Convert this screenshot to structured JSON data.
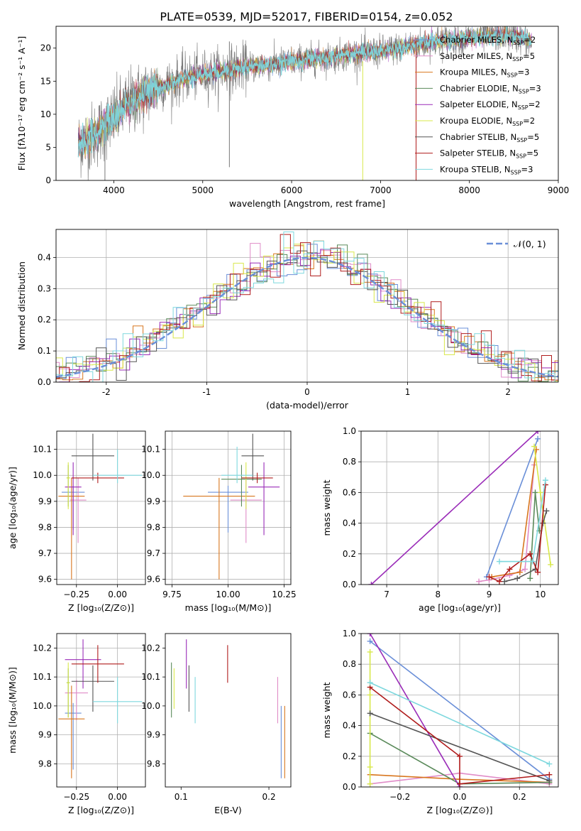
{
  "figure_title": "PLATE=0539, MJD=52017, FIBERID=0154, z=0.052",
  "colors": {
    "chabrier_miles": "#6a8fd8",
    "salpeter_miles": "#e08cc8",
    "kroupa_miles": "#d8761e",
    "chabrier_elodie": "#5a8a5a",
    "salpeter_elodie": "#9a2cb8",
    "kroupa_elodie": "#d8e84a",
    "chabrier_stelib": "#555555",
    "salpeter_stelib": "#b01c1c",
    "kroupa_stelib": "#7ed8de",
    "gauss": "#6a8fd8"
  },
  "chart_data": [
    {
      "id": "spectrum",
      "type": "line",
      "xlabel": "wavelength [Angstrom, rest frame]",
      "ylabel": "Flux [fλ10⁻¹⁷ erg cm⁻² s⁻¹ A⁻¹]",
      "xlim": [
        3350,
        9000
      ],
      "ylim": [
        0,
        23.3
      ],
      "xticks": [
        4000,
        5000,
        6000,
        7000,
        8000,
        9000
      ],
      "yticks": [
        0,
        5,
        10,
        15,
        20
      ],
      "legend_position": "top-right",
      "x_range_data": [
        3600,
        8700
      ],
      "spectrum_anchor_x": [
        3600,
        3800,
        4000,
        4200,
        4400,
        4600,
        4800,
        5000,
        5200,
        5400,
        5600,
        5800,
        6000,
        6200,
        6400,
        6600,
        6800,
        7000,
        7200,
        7400,
        7600,
        7800,
        8000,
        8200,
        8400,
        8600,
        8700
      ],
      "spectrum_anchor_y": [
        5.5,
        7.0,
        9.5,
        12.0,
        13.5,
        14.5,
        15.5,
        16.0,
        16.5,
        17.0,
        17.3,
        17.5,
        18.0,
        18.3,
        18.5,
        19.0,
        19.3,
        19.5,
        20.0,
        20.5,
        21.0,
        21.3,
        21.5,
        21.8,
        22.0,
        21.5,
        21.0
      ],
      "legend": [
        {
          "label": "Chabrier MILES, N",
          "sub": "SSP",
          "tail": "=2",
          "color": "#6a8fd8"
        },
        {
          "label": "Salpeter MILES, N",
          "sub": "SSP",
          "tail": "=5",
          "color": "#e08cc8"
        },
        {
          "label": "Kroupa MILES, N",
          "sub": "SSP",
          "tail": "=3",
          "color": "#d8761e"
        },
        {
          "label": "Chabrier ELODIE, N",
          "sub": "SSP",
          "tail": "=3",
          "color": "#5a8a5a"
        },
        {
          "label": "Salpeter ELODIE, N",
          "sub": "SSP",
          "tail": "=2",
          "color": "#9a2cb8"
        },
        {
          "label": "Kroupa ELODIE, N",
          "sub": "SSP",
          "tail": "=2",
          "color": "#d8e84a"
        },
        {
          "label": "Chabrier STELIB, N",
          "sub": "SSP",
          "tail": "=5",
          "color": "#555555"
        },
        {
          "label": "Salpeter STELIB, N",
          "sub": "SSP",
          "tail": "=5",
          "color": "#b01c1c"
        },
        {
          "label": "Kroupa STELIB, N",
          "sub": "SSP",
          "tail": "=3",
          "color": "#7ed8de"
        }
      ]
    },
    {
      "id": "residuals",
      "type": "line",
      "xlabel": "(data-model)/error",
      "ylabel": "Normed distribution",
      "xlim": [
        -2.5,
        2.5
      ],
      "ylim": [
        0,
        0.49
      ],
      "xticks": [
        -2,
        -1,
        0,
        1,
        2
      ],
      "yticks": [
        0.0,
        0.1,
        0.2,
        0.3,
        0.4
      ],
      "grid": true,
      "legend_position": "top-right",
      "legend_label": "𝒩(0, 1)",
      "bin_width": 0.1,
      "gaussian": {
        "mean": 0,
        "sigma": 1
      }
    },
    {
      "id": "age_vs_Z",
      "type": "scatter",
      "xlabel": "Z [log₁₀(Z/Z⊙)]",
      "ylabel": "age  [log₁₀(age/yr)]",
      "xlim": [
        -0.37,
        0.17
      ],
      "ylim": [
        9.58,
        10.17
      ],
      "xticks": [
        -0.25,
        0.0
      ],
      "xticklabels": [
        "−0.25",
        "0.00"
      ],
      "yticks": [
        9.6,
        9.7,
        9.8,
        9.9,
        10.0,
        10.1
      ],
      "grid": true,
      "points": [
        {
          "c": "#6a8fd8",
          "x": -0.27,
          "xerr": 0.07,
          "y": 9.935,
          "ylo": 9.79,
          "yhi": 9.96
        },
        {
          "c": "#e08cc8",
          "x": -0.24,
          "xerr": 0.05,
          "y": 9.905,
          "ylo": 9.74,
          "yhi": 9.99
        },
        {
          "c": "#d8761e",
          "x": -0.28,
          "xerr": 0.08,
          "y": 9.92,
          "ylo": 9.6,
          "yhi": 9.99
        },
        {
          "c": "#5a8a5a",
          "x": -0.3,
          "xerr": 0.01,
          "y": 9.99,
          "ylo": 9.88,
          "yhi": 10.04
        },
        {
          "c": "#9a2cb8",
          "x": -0.27,
          "xerr": 0.05,
          "y": 9.955,
          "ylo": 9.77,
          "yhi": 10.05
        },
        {
          "c": "#d8e84a",
          "x": -0.3,
          "xerr": 0.01,
          "y": 9.99,
          "ylo": 9.87,
          "yhi": 10.05
        },
        {
          "c": "#555555",
          "x": -0.15,
          "xerr": 0.13,
          "y": 10.075,
          "ylo": 9.98,
          "yhi": 10.16
        },
        {
          "c": "#b01c1c",
          "x": -0.12,
          "xerr": 0.16,
          "y": 9.99,
          "ylo": 9.97,
          "yhi": 10.01
        },
        {
          "c": "#7ed8de",
          "x": 0.0,
          "xerr": 0.15,
          "y": 10.0,
          "ylo": 9.97,
          "yhi": 10.1
        }
      ]
    },
    {
      "id": "age_vs_mass",
      "type": "scatter",
      "xlabel": "mass [log₁₀(M/M⊙)]",
      "ylabel": "",
      "xlim": [
        9.72,
        10.28
      ],
      "ylim": [
        9.58,
        10.17
      ],
      "xticks": [
        9.75,
        10.0,
        10.25
      ],
      "xticklabels": [
        "9.75",
        "10.00",
        "10.25"
      ],
      "yticks": [
        9.6,
        9.7,
        9.8,
        9.9,
        10.0,
        10.1
      ],
      "grid": true,
      "points": [
        {
          "c": "#6a8fd8",
          "x": 10.0,
          "xerr": 0.09,
          "y": 9.935,
          "ylo": 9.78,
          "yhi": 9.96
        },
        {
          "c": "#e08cc8",
          "x": 10.08,
          "xerr": 0.07,
          "y": 9.905,
          "ylo": 9.74,
          "yhi": 9.99
        },
        {
          "c": "#d8761e",
          "x": 9.96,
          "xerr": 0.16,
          "y": 9.92,
          "ylo": 9.6,
          "yhi": 9.99
        },
        {
          "c": "#5a8a5a",
          "x": 10.06,
          "xerr": 0.09,
          "y": 9.985,
          "ylo": 9.88,
          "yhi": 10.04
        },
        {
          "c": "#9a2cb8",
          "x": 10.16,
          "xerr": 0.07,
          "y": 9.955,
          "ylo": 9.77,
          "yhi": 10.05
        },
        {
          "c": "#d8e84a",
          "x": 10.08,
          "xerr": 0.02,
          "y": 9.99,
          "ylo": 9.87,
          "yhi": 10.05
        },
        {
          "c": "#555555",
          "x": 10.11,
          "xerr": 0.05,
          "y": 10.075,
          "ylo": 9.98,
          "yhi": 10.16
        },
        {
          "c": "#b01c1c",
          "x": 10.13,
          "xerr": 0.07,
          "y": 9.99,
          "ylo": 9.97,
          "yhi": 10.01
        },
        {
          "c": "#7ed8de",
          "x": 10.04,
          "xerr": 0.07,
          "y": 10.0,
          "ylo": 9.97,
          "yhi": 10.11
        }
      ]
    },
    {
      "id": "weight_vs_age",
      "type": "line",
      "xlabel": "age  [log₁₀(age/yr)]",
      "ylabel": "mass weight",
      "xlim": [
        6.5,
        10.35
      ],
      "ylim": [
        0,
        1.0
      ],
      "xticks": [
        7,
        8,
        9,
        10
      ],
      "yticks": [
        0.0,
        0.2,
        0.4,
        0.6,
        0.8,
        1.0
      ],
      "grid": true,
      "series": [
        {
          "c": "#6a8fd8",
          "x": [
            8.95,
            9.95
          ],
          "y": [
            0.05,
            0.95
          ]
        },
        {
          "c": "#e08cc8",
          "x": [
            8.8,
            9.0,
            9.4,
            9.7,
            9.88
          ],
          "y": [
            0.02,
            0.03,
            0.06,
            0.1,
            0.78
          ]
        },
        {
          "c": "#d8761e",
          "x": [
            9.05,
            9.6,
            9.92
          ],
          "y": [
            0.05,
            0.08,
            0.88
          ]
        },
        {
          "c": "#5a8a5a",
          "x": [
            9.8,
            9.9,
            9.98
          ],
          "y": [
            0.04,
            0.6,
            0.35
          ]
        },
        {
          "c": "#9a2cb8",
          "x": [
            6.7,
            9.95
          ],
          "y": [
            0.0,
            1.0
          ]
        },
        {
          "c": "#d8e84a",
          "x": [
            9.88,
            10.0,
            10.2
          ],
          "y": [
            0.9,
            0.6,
            0.13
          ]
        },
        {
          "c": "#555555",
          "x": [
            9.3,
            9.55,
            9.9,
            10.05,
            10.12
          ],
          "y": [
            0.02,
            0.04,
            0.1,
            0.4,
            0.48
          ]
        },
        {
          "c": "#b01c1c",
          "x": [
            9.0,
            9.2,
            9.4,
            9.8,
            9.95,
            10.1
          ],
          "y": [
            0.05,
            0.02,
            0.1,
            0.2,
            0.08,
            0.65
          ]
        },
        {
          "c": "#7ed8de",
          "x": [
            9.2,
            9.85,
            10.1
          ],
          "y": [
            0.15,
            0.15,
            0.68
          ]
        }
      ]
    },
    {
      "id": "mass_vs_Z",
      "type": "scatter",
      "xlabel": "Z [log₁₀(Z/Z⊙)]",
      "ylabel": "mass [log₁₀(M/M⊙)]",
      "xlim": [
        -0.37,
        0.17
      ],
      "ylim": [
        9.72,
        10.25
      ],
      "xticks": [
        -0.25,
        0.0
      ],
      "xticklabels": [
        "−0.25",
        "0.00"
      ],
      "yticks": [
        9.8,
        9.9,
        10.0,
        10.1,
        10.2
      ],
      "grid": true,
      "points": [
        {
          "c": "#6a8fd8",
          "x": -0.27,
          "xerr": 0.05,
          "y": 9.975,
          "ylo": 9.78,
          "yhi": 10.01
        },
        {
          "c": "#e08cc8",
          "x": -0.25,
          "xerr": 0.07,
          "y": 10.045,
          "ylo": 9.95,
          "yhi": 10.09
        },
        {
          "c": "#d8761e",
          "x": -0.28,
          "xerr": 0.08,
          "y": 9.955,
          "ylo": 9.75,
          "yhi": 10.07
        },
        {
          "c": "#5a8a5a",
          "x": -0.3,
          "xerr": 0.01,
          "y": 10.08,
          "ylo": 9.96,
          "yhi": 10.13
        },
        {
          "c": "#9a2cb8",
          "x": -0.21,
          "xerr": 0.11,
          "y": 10.16,
          "ylo": 10.06,
          "yhi": 10.23
        },
        {
          "c": "#d8e84a",
          "x": -0.3,
          "xerr": 0.01,
          "y": 10.08,
          "ylo": 9.96,
          "yhi": 10.15
        },
        {
          "c": "#555555",
          "x": -0.15,
          "xerr": 0.13,
          "y": 10.085,
          "ylo": 9.98,
          "yhi": 10.14
        },
        {
          "c": "#b01c1c",
          "x": -0.12,
          "xerr": 0.16,
          "y": 10.145,
          "ylo": 10.08,
          "yhi": 10.21
        },
        {
          "c": "#7ed8de",
          "x": 0.0,
          "xerr": 0.15,
          "y": 10.015,
          "ylo": 9.94,
          "yhi": 10.1
        }
      ]
    },
    {
      "id": "mass_vs_ebv",
      "type": "scatter",
      "xlabel": "E(B-V)",
      "ylabel": "",
      "xlim": [
        0.082,
        0.225
      ],
      "ylim": [
        9.72,
        10.25
      ],
      "xticks": [
        0.1,
        0.2
      ],
      "xticklabels": [
        "0.1",
        "0.2"
      ],
      "yticks": [
        9.8,
        9.9,
        10.0,
        10.1,
        10.2
      ],
      "grid": false,
      "points": [
        {
          "c": "#5a8a5a",
          "x": 0.089,
          "ylo": 9.96,
          "yhi": 10.15
        },
        {
          "c": "#d8e84a",
          "x": 0.092,
          "ylo": 9.99,
          "yhi": 10.13
        },
        {
          "c": "#9a2cb8",
          "x": 0.106,
          "ylo": 10.06,
          "yhi": 10.23
        },
        {
          "c": "#555555",
          "x": 0.109,
          "ylo": 9.98,
          "yhi": 10.14
        },
        {
          "c": "#7ed8de",
          "x": 0.116,
          "ylo": 9.94,
          "yhi": 10.1
        },
        {
          "c": "#b01c1c",
          "x": 0.153,
          "ylo": 10.08,
          "yhi": 10.21
        },
        {
          "c": "#e08cc8",
          "x": 0.21,
          "ylo": 9.94,
          "yhi": 10.1
        },
        {
          "c": "#6a8fd8",
          "x": 0.214,
          "ylo": 9.75,
          "yhi": 10.0
        },
        {
          "c": "#d8761e",
          "x": 0.218,
          "ylo": 9.75,
          "yhi": 10.0
        }
      ]
    },
    {
      "id": "weight_vs_Z",
      "type": "line",
      "xlabel": "Z [log₁₀(Z/Z⊙)]",
      "ylabel": "mass weight",
      "xlim": [
        -0.33,
        0.33
      ],
      "ylim": [
        0,
        1.0
      ],
      "xticks": [
        -0.2,
        0.0,
        0.2
      ],
      "xticklabels": [
        "−0.2",
        "0.0",
        "0.2"
      ],
      "yticks": [
        0.0,
        0.2,
        0.4,
        0.6,
        0.8,
        1.0
      ],
      "grid": true,
      "series": [
        {
          "c": "#6a8fd8",
          "x": [
            -0.3,
            0.3
          ],
          "y": [
            0.95,
            0.05
          ]
        },
        {
          "c": "#e08cc8",
          "x": [
            -0.3,
            0.0,
            0.3
          ],
          "y": [
            0.02,
            0.09,
            0.02
          ]
        },
        {
          "c": "#d8761e",
          "x": [
            -0.3,
            0.0,
            0.3
          ],
          "y": [
            0.08,
            0.05,
            0.03
          ]
        },
        {
          "c": "#5a8a5a",
          "x": [
            -0.3,
            0.0,
            0.3
          ],
          "y": [
            0.35,
            0.02,
            0.03
          ]
        },
        {
          "c": "#9a2cb8",
          "x": [
            -0.3,
            0.0
          ],
          "y": [
            1.0,
            0.0
          ]
        },
        {
          "c": "#d8e84a",
          "x": [
            -0.3,
            -0.3,
            -0.3,
            -0.3
          ],
          "y": [
            0.02,
            0.6,
            0.88,
            0.13
          ]
        },
        {
          "c": "#555555",
          "x": [
            -0.3,
            0.3
          ],
          "y": [
            0.48,
            0.04
          ]
        },
        {
          "c": "#b01c1c",
          "x": [
            -0.3,
            0.0,
            0.0,
            0.3
          ],
          "y": [
            0.65,
            0.2,
            0.02,
            0.08
          ]
        },
        {
          "c": "#7ed8de",
          "x": [
            -0.3,
            0.3
          ],
          "y": [
            0.68,
            0.15
          ]
        }
      ]
    }
  ]
}
